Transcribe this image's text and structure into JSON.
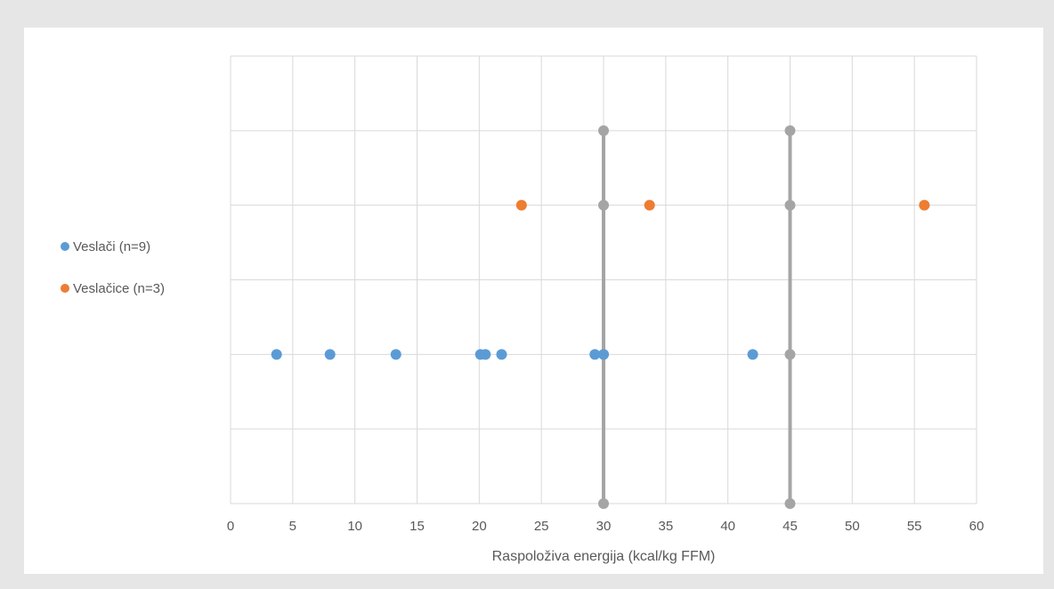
{
  "chart_data": {
    "type": "scatter",
    "xlabel": "Raspoloživa energija (kcal/kg FFM)",
    "xlim": [
      0,
      60
    ],
    "x_ticks": [
      "0",
      "5",
      "10",
      "15",
      "20",
      "25",
      "30",
      "35",
      "40",
      "45",
      "50",
      "55",
      "60"
    ],
    "ylim": [
      0,
      6
    ],
    "y_gridlines": 6,
    "grid": true,
    "legend_position": "left",
    "series": [
      {
        "name": "Veslači (n=9)",
        "color": "#5b9bd5",
        "points": [
          {
            "x": 3.7,
            "y": 2
          },
          {
            "x": 8.0,
            "y": 2
          },
          {
            "x": 13.3,
            "y": 2
          },
          {
            "x": 20.1,
            "y": 2
          },
          {
            "x": 20.5,
            "y": 2
          },
          {
            "x": 21.8,
            "y": 2
          },
          {
            "x": 29.3,
            "y": 2
          },
          {
            "x": 30.0,
            "y": 2
          },
          {
            "x": 42.0,
            "y": 2
          }
        ]
      },
      {
        "name": "Veslačice (n=3)",
        "color": "#ed7d31",
        "points": [
          {
            "x": 23.4,
            "y": 4
          },
          {
            "x": 33.7,
            "y": 4
          },
          {
            "x": 55.8,
            "y": 4
          }
        ]
      }
    ],
    "reference_lines": [
      {
        "x": 30,
        "y_points": [
          0,
          2,
          4,
          5
        ],
        "color": "#a5a5a5"
      },
      {
        "x": 45,
        "y_points": [
          0,
          2,
          4,
          5
        ],
        "color": "#a5a5a5"
      }
    ]
  }
}
